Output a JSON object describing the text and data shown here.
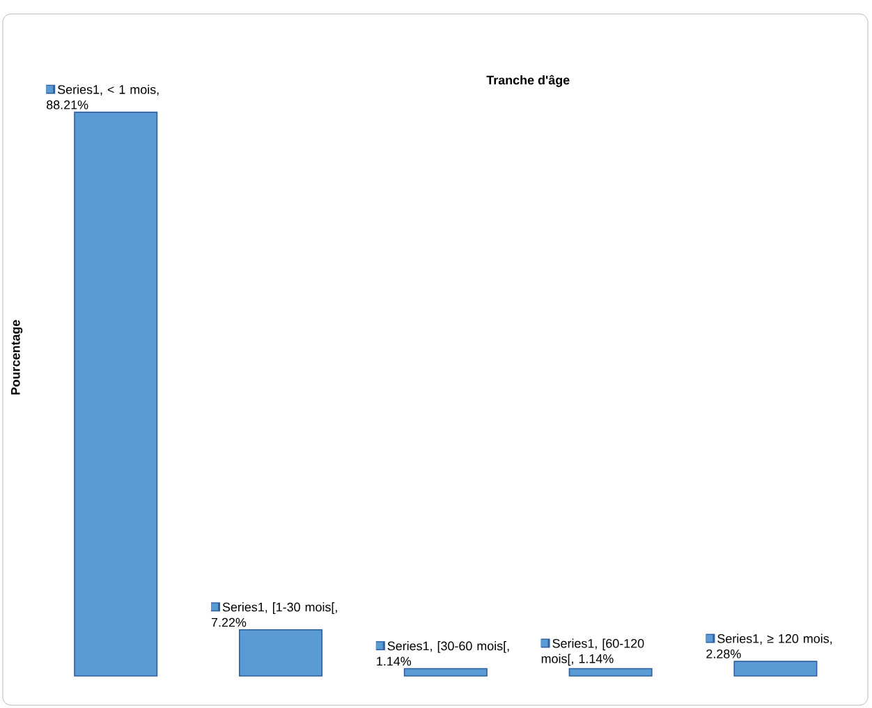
{
  "chart_data": {
    "type": "bar",
    "title": "Tranche d'âge",
    "ylabel": "Pourcentage",
    "categories": [
      null,
      null,
      null,
      null,
      null
    ],
    "values": [
      88.21,
      7.22,
      1.14,
      1.14,
      2.28
    ],
    "value_labels": [
      "Series1, < 1 mois, 88.21%",
      "Series1, [1-30 mois[, 7.22%",
      "Series1, [30-60 mois[, 1.14%",
      "Series1, [60-120 mois[, 1.14%",
      "Series1, ≥ 120 mois, 2.28%"
    ],
    "color": "#5b9bd5"
  }
}
